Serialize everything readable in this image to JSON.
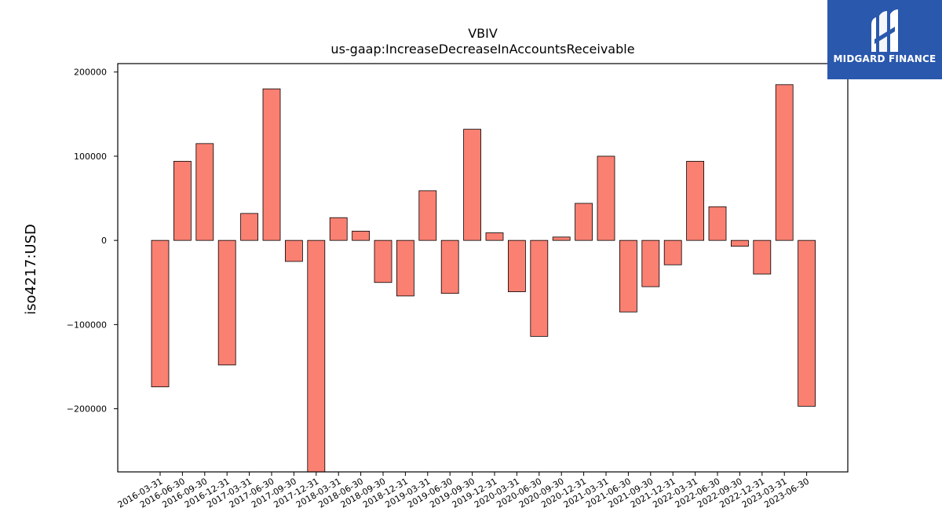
{
  "chart_data": {
    "type": "bar",
    "title": "VBIV",
    "subtitle": "us-gaap:IncreaseDecreaseInAccountsReceivable",
    "ylabel": "iso4217:USD",
    "xlabel": "",
    "ylim": [
      -275000,
      210000
    ],
    "yticks": [
      200000,
      100000,
      0,
      -100000,
      -200000
    ],
    "ytick_labels": [
      "200000",
      "100000",
      "0",
      "−100000",
      "−200000"
    ],
    "grid": false,
    "bar_color": "#fa8072",
    "categories": [
      "2016-03-31",
      "2016-06-30",
      "2016-09-30",
      "2016-12-31",
      "2017-03-31",
      "2017-06-30",
      "2017-09-30",
      "2017-12-31",
      "2018-03-31",
      "2018-06-30",
      "2018-09-30",
      "2018-12-31",
      "2019-03-31",
      "2019-06-30",
      "2019-09-30",
      "2019-12-31",
      "2020-03-31",
      "2020-06-30",
      "2020-09-30",
      "2020-12-31",
      "2021-03-31",
      "2021-06-30",
      "2021-09-30",
      "2021-12-31",
      "2022-03-31",
      "2022-06-30",
      "2022-09-30",
      "2022-12-31",
      "2023-03-31",
      "2023-06-30"
    ],
    "values": [
      -174000,
      94000,
      115000,
      -148000,
      32000,
      180000,
      -25000,
      -280000,
      27000,
      11000,
      -50000,
      -66000,
      59000,
      -63000,
      132000,
      9000,
      -61000,
      -114000,
      4000,
      44000,
      100000,
      -85000,
      -55000,
      -29000,
      94000,
      40000,
      -7000,
      -40000,
      185000,
      -197000
    ]
  },
  "logo": {
    "text": "MIDGARD FINANCE",
    "icon": "midgard-logo-icon"
  }
}
